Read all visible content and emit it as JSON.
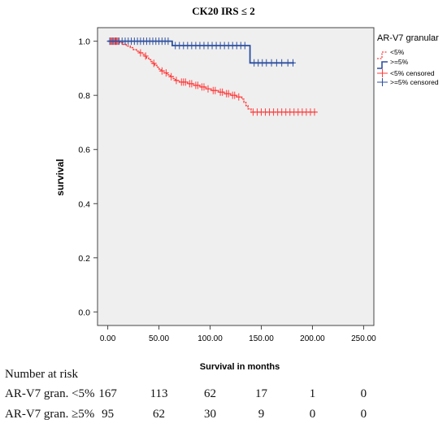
{
  "chart_data": {
    "type": "line",
    "title": "CK20 IRS ≤ 2",
    "xlabel": "Survival in months",
    "ylabel": "survival",
    "xlim": [
      -10,
      260
    ],
    "ylim": [
      -0.05,
      1.05
    ],
    "xticks": [
      "0.00",
      "50.00",
      "100.00",
      "150.00",
      "200.00",
      "250.00"
    ],
    "xtick_values": [
      0,
      50,
      100,
      150,
      200,
      250
    ],
    "yticks": [
      "0.0",
      "0.2",
      "0.4",
      "0.6",
      "0.8",
      "1.0"
    ],
    "ytick_values": [
      0,
      0.2,
      0.4,
      0.6,
      0.8,
      1.0
    ],
    "grid": false,
    "legend": {
      "title": "AR-V7 granular",
      "placement": "top-right",
      "entries": [
        "<5%",
        ">=5%",
        "<5% censored",
        ">=5% censored"
      ]
    },
    "colors": {
      "lt5": "#ff3b3b",
      "ge5": "#2d4fa0",
      "plot_bg": "#efefef"
    },
    "series": [
      {
        "name": "<5%",
        "steps": [
          [
            0,
            1.0
          ],
          [
            12,
            0.994
          ],
          [
            15,
            0.988
          ],
          [
            18,
            0.982
          ],
          [
            22,
            0.976
          ],
          [
            25,
            0.969
          ],
          [
            28,
            0.963
          ],
          [
            31,
            0.957
          ],
          [
            34,
            0.951
          ],
          [
            36,
            0.945
          ],
          [
            38,
            0.938
          ],
          [
            40,
            0.932
          ],
          [
            42,
            0.925
          ],
          [
            44,
            0.918
          ],
          [
            46,
            0.911
          ],
          [
            48,
            0.904
          ],
          [
            50,
            0.897
          ],
          [
            52,
            0.89
          ],
          [
            55,
            0.883
          ],
          [
            58,
            0.876
          ],
          [
            61,
            0.869
          ],
          [
            64,
            0.862
          ],
          [
            66,
            0.855
          ],
          [
            70,
            0.849
          ],
          [
            78,
            0.843
          ],
          [
            84,
            0.837
          ],
          [
            90,
            0.831
          ],
          [
            96,
            0.824
          ],
          [
            101,
            0.818
          ],
          [
            108,
            0.812
          ],
          [
            114,
            0.806
          ],
          [
            120,
            0.8
          ],
          [
            126,
            0.794
          ],
          [
            131,
            0.786
          ],
          [
            133,
            0.774
          ],
          [
            135,
            0.762
          ],
          [
            137,
            0.75
          ],
          [
            140,
            0.738
          ],
          [
            205,
            0.738
          ]
        ],
        "censored": [
          [
            2,
            1.0
          ],
          [
            3,
            1.0
          ],
          [
            4,
            1.0
          ],
          [
            5,
            1.0
          ],
          [
            6,
            1.0
          ],
          [
            7,
            1.0
          ],
          [
            8,
            1.0
          ],
          [
            9,
            1.0
          ],
          [
            10,
            1.0
          ],
          [
            32,
            0.957
          ],
          [
            37,
            0.945
          ],
          [
            45,
            0.918
          ],
          [
            53,
            0.89
          ],
          [
            57,
            0.883
          ],
          [
            62,
            0.869
          ],
          [
            67,
            0.855
          ],
          [
            72,
            0.849
          ],
          [
            74,
            0.849
          ],
          [
            76,
            0.849
          ],
          [
            80,
            0.843
          ],
          [
            82,
            0.843
          ],
          [
            86,
            0.837
          ],
          [
            88,
            0.837
          ],
          [
            92,
            0.831
          ],
          [
            94,
            0.831
          ],
          [
            98,
            0.824
          ],
          [
            103,
            0.818
          ],
          [
            105,
            0.818
          ],
          [
            110,
            0.812
          ],
          [
            112,
            0.812
          ],
          [
            116,
            0.806
          ],
          [
            118,
            0.806
          ],
          [
            122,
            0.8
          ],
          [
            124,
            0.8
          ],
          [
            128,
            0.794
          ],
          [
            142,
            0.738
          ],
          [
            146,
            0.738
          ],
          [
            150,
            0.738
          ],
          [
            154,
            0.738
          ],
          [
            158,
            0.738
          ],
          [
            162,
            0.738
          ],
          [
            166,
            0.738
          ],
          [
            170,
            0.738
          ],
          [
            174,
            0.738
          ],
          [
            178,
            0.738
          ],
          [
            182,
            0.738
          ],
          [
            186,
            0.738
          ],
          [
            190,
            0.738
          ],
          [
            194,
            0.738
          ],
          [
            198,
            0.738
          ],
          [
            202,
            0.738
          ]
        ]
      },
      {
        "name": ">=5%",
        "steps": [
          [
            0,
            1.0
          ],
          [
            63,
            0.984
          ],
          [
            139,
            0.92
          ],
          [
            182,
            0.92
          ]
        ],
        "censored": [
          [
            2,
            1.0
          ],
          [
            5,
            1.0
          ],
          [
            8,
            1.0
          ],
          [
            11,
            1.0
          ],
          [
            14,
            1.0
          ],
          [
            17,
            1.0
          ],
          [
            20,
            1.0
          ],
          [
            23,
            1.0
          ],
          [
            26,
            1.0
          ],
          [
            29,
            1.0
          ],
          [
            32,
            1.0
          ],
          [
            35,
            1.0
          ],
          [
            38,
            1.0
          ],
          [
            41,
            1.0
          ],
          [
            44,
            1.0
          ],
          [
            47,
            1.0
          ],
          [
            50,
            1.0
          ],
          [
            53,
            1.0
          ],
          [
            56,
            1.0
          ],
          [
            59,
            1.0
          ],
          [
            66,
            0.984
          ],
          [
            70,
            0.984
          ],
          [
            74,
            0.984
          ],
          [
            78,
            0.984
          ],
          [
            82,
            0.984
          ],
          [
            86,
            0.984
          ],
          [
            90,
            0.984
          ],
          [
            94,
            0.984
          ],
          [
            98,
            0.984
          ],
          [
            102,
            0.984
          ],
          [
            106,
            0.984
          ],
          [
            110,
            0.984
          ],
          [
            114,
            0.984
          ],
          [
            118,
            0.984
          ],
          [
            122,
            0.984
          ],
          [
            126,
            0.984
          ],
          [
            130,
            0.984
          ],
          [
            134,
            0.984
          ],
          [
            143,
            0.92
          ],
          [
            147,
            0.92
          ],
          [
            151,
            0.92
          ],
          [
            155,
            0.92
          ],
          [
            160,
            0.92
          ],
          [
            165,
            0.92
          ],
          [
            170,
            0.92
          ],
          [
            176,
            0.92
          ],
          [
            181,
            0.92
          ]
        ]
      }
    ]
  },
  "risk_table": {
    "header": "Number at risk",
    "time_points": [
      0,
      50,
      100,
      150,
      200,
      250
    ],
    "rows": [
      {
        "label": "AR-V7 gran. <5%",
        "counts": [
          "167",
          "113",
          "62",
          "17",
          "1",
          "0"
        ]
      },
      {
        "label": "AR-V7 gran. ≥5%",
        "counts": [
          "95",
          "62",
          "30",
          "9",
          "0",
          "0"
        ]
      }
    ]
  }
}
